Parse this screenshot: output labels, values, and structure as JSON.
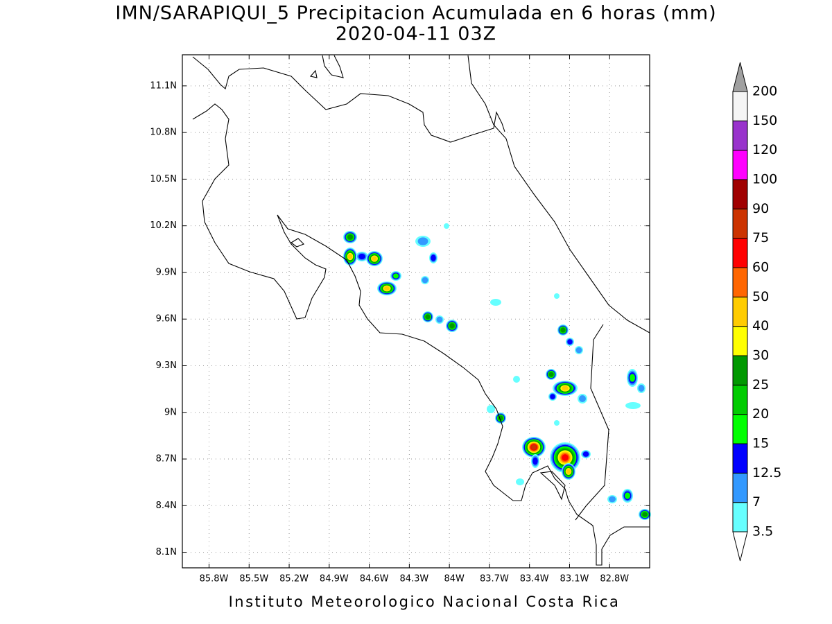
{
  "title": "IMN/SARAPIQUI_5 Precipitacion Acumulada en 6 horas (mm)",
  "subtitle": "2020-04-11 03Z",
  "footer": "Instituto Meteorologico Nacional Costa Rica",
  "map": {
    "lonlim": [
      -86,
      -82.5
    ],
    "latlim": [
      8,
      11.3
    ],
    "grid": true,
    "lon_ticks": [
      {
        "value": -85.8,
        "label": "85.8W"
      },
      {
        "value": -85.5,
        "label": "85.5W"
      },
      {
        "value": -85.2,
        "label": "85.2W"
      },
      {
        "value": -84.9,
        "label": "84.9W"
      },
      {
        "value": -84.6,
        "label": "84.6W"
      },
      {
        "value": -84.3,
        "label": "84.3W"
      },
      {
        "value": -84,
        "label": "84W"
      },
      {
        "value": -83.7,
        "label": "83.7W"
      },
      {
        "value": -83.4,
        "label": "83.4W"
      },
      {
        "value": -83.1,
        "label": "83.1W"
      },
      {
        "value": -82.8,
        "label": "82.8W"
      }
    ],
    "lat_ticks": [
      {
        "value": 11.1,
        "label": "11.1N"
      },
      {
        "value": 10.8,
        "label": "10.8N"
      },
      {
        "value": 10.5,
        "label": "10.5N"
      },
      {
        "value": 10.2,
        "label": "10.2N"
      },
      {
        "value": 9.9,
        "label": "9.9N"
      },
      {
        "value": 9.6,
        "label": "9.6N"
      },
      {
        "value": 9.3,
        "label": "9.3N"
      },
      {
        "value": 9,
        "label": "9N"
      },
      {
        "value": 8.7,
        "label": "8.7N"
      },
      {
        "value": 8.4,
        "label": "8.4N"
      },
      {
        "value": 8.1,
        "label": "8.1N"
      }
    ]
  },
  "colorbar": {
    "levels": [
      3.5,
      7,
      12.5,
      15,
      20,
      25,
      30,
      40,
      50,
      60,
      75,
      90,
      100,
      120,
      150,
      200
    ],
    "colors": [
      "#66ffff",
      "#3399ff",
      "#0000ff",
      "#00ff00",
      "#00cc00",
      "#009900",
      "#ffff00",
      "#ffcc00",
      "#ff6600",
      "#ff0000",
      "#cc3300",
      "#a00000",
      "#ff00ff",
      "#9933cc",
      "#f5f5f5"
    ],
    "over_color": "#a0a0a0",
    "under_color": "#ffffff"
  }
}
